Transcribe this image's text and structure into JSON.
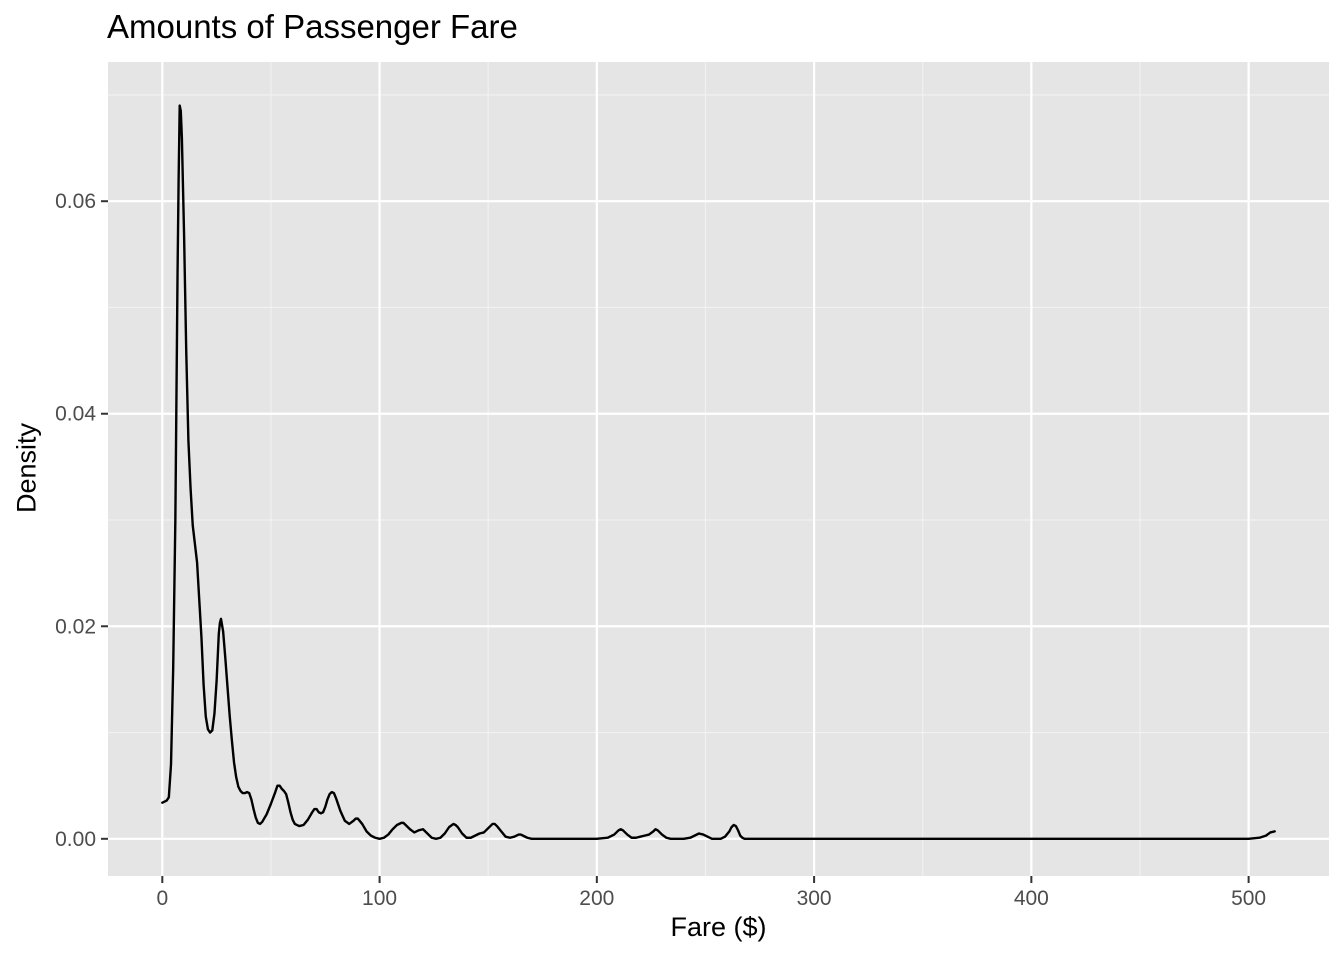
{
  "chart_data": {
    "type": "line",
    "subtype": "density",
    "title": "Amounts of Passenger Fare",
    "xlabel": "Fare ($)",
    "ylabel": "Density",
    "xlim": [
      -25,
      537
    ],
    "ylim": [
      -0.0035,
      0.0731
    ],
    "x_ticks": [
      0,
      100,
      200,
      300,
      400,
      500
    ],
    "x_tick_labels": [
      "0",
      "100",
      "200",
      "300",
      "400",
      "500"
    ],
    "x_minor_ticks": [
      50,
      150,
      250,
      350,
      450
    ],
    "y_ticks": [
      0,
      0.02,
      0.04,
      0.06
    ],
    "y_tick_labels": [
      "0.00",
      "0.02",
      "0.04",
      "0.06"
    ],
    "y_minor_ticks": [
      0.01,
      0.03,
      0.05,
      0.07
    ],
    "grid": true,
    "legend": "none",
    "colors": {
      "panel_background": "#e5e5e5",
      "grid_major": "#ffffff",
      "grid_minor": "#f2f2f2",
      "line": "#000000",
      "tick_label": "#4d4d4d",
      "tick_mark": "#333333"
    },
    "series": [
      {
        "x": [
          0,
          2,
          3,
          4,
          5,
          6,
          7,
          7.5,
          8,
          8.5,
          9,
          10,
          11,
          12,
          13,
          14,
          16,
          18,
          19,
          20,
          21,
          22,
          23,
          24,
          25,
          26,
          26.5,
          27,
          28,
          29,
          30,
          31,
          32,
          33,
          34,
          35,
          36,
          37,
          38,
          39,
          40,
          41,
          42,
          43,
          44,
          45,
          46,
          48,
          50,
          52,
          53,
          54,
          55,
          56,
          57,
          58,
          59,
          60,
          61,
          63,
          65,
          67,
          69,
          70,
          71,
          72,
          73,
          74,
          75,
          76,
          77,
          78,
          79,
          80,
          82,
          84,
          86,
          88,
          89,
          90,
          92,
          94,
          96,
          98,
          100,
          102,
          104,
          106,
          108,
          110,
          111,
          112,
          114,
          116,
          118,
          120,
          122,
          124,
          126,
          128,
          130,
          132,
          134,
          135,
          136,
          138,
          140,
          142,
          144,
          146,
          148,
          150,
          152,
          153,
          154,
          156,
          158,
          160,
          162,
          164,
          165,
          166,
          168,
          170,
          180,
          190,
          200,
          205,
          208,
          210,
          211,
          212,
          214,
          216,
          218,
          220,
          222,
          224,
          226,
          227,
          228,
          230,
          232,
          234,
          236,
          240,
          243,
          245,
          247,
          249,
          251,
          253,
          255,
          257,
          259,
          261,
          262,
          263,
          264,
          265,
          266,
          267,
          268,
          270,
          280,
          300,
          350,
          400,
          450,
          500,
          505,
          508,
          510,
          512
        ],
        "y": [
          0.0034,
          0.0036,
          0.0039,
          0.007,
          0.016,
          0.03,
          0.053,
          0.062,
          0.069,
          0.0685,
          0.066,
          0.057,
          0.046,
          0.0375,
          0.033,
          0.0295,
          0.026,
          0.019,
          0.0145,
          0.0115,
          0.0103,
          0.01,
          0.0102,
          0.0118,
          0.0149,
          0.0193,
          0.0203,
          0.0207,
          0.0195,
          0.017,
          0.0143,
          0.0116,
          0.0093,
          0.0072,
          0.0058,
          0.0049,
          0.0045,
          0.0043,
          0.0043,
          0.0044,
          0.0043,
          0.0037,
          0.0028,
          0.002,
          0.0015,
          0.0014,
          0.0016,
          0.0023,
          0.0033,
          0.0044,
          0.005,
          0.005,
          0.0047,
          0.0045,
          0.0042,
          0.0034,
          0.0025,
          0.0018,
          0.0014,
          0.0012,
          0.0013,
          0.0018,
          0.0025,
          0.0028,
          0.0028,
          0.0025,
          0.0024,
          0.0025,
          0.003,
          0.0037,
          0.0042,
          0.0044,
          0.0043,
          0.0038,
          0.0026,
          0.0017,
          0.0014,
          0.0017,
          0.0019,
          0.0019,
          0.0014,
          0.0007,
          0.0003,
          0.0001,
          0.0,
          0.0001,
          0.0004,
          0.0009,
          0.0013,
          0.0015,
          0.0015,
          0.0013,
          0.0009,
          0.0006,
          0.0008,
          0.0009,
          0.0005,
          0.0001,
          0.0,
          0.0001,
          0.0005,
          0.0011,
          0.0014,
          0.0013,
          0.0011,
          0.0005,
          0.0001,
          0.0001,
          0.0003,
          0.0005,
          0.0006,
          0.001,
          0.0014,
          0.0014,
          0.0012,
          0.0007,
          0.0002,
          0.0001,
          0.0002,
          0.0004,
          0.0004,
          0.0003,
          0.0001,
          0.0,
          0.0,
          0.0,
          0.0,
          0.0001,
          0.0004,
          0.0008,
          0.0009,
          0.0008,
          0.0004,
          0.0001,
          0.0001,
          0.0002,
          0.0003,
          0.0004,
          0.0007,
          0.0009,
          0.0008,
          0.0004,
          0.0001,
          0.0,
          0.0,
          0.0,
          0.0001,
          0.0003,
          0.0005,
          0.0004,
          0.0002,
          0.0,
          0.0,
          0.0,
          0.0002,
          0.0007,
          0.0011,
          0.0013,
          0.0012,
          0.0008,
          0.0003,
          0.0001,
          0.0,
          0.0,
          0.0,
          0.0,
          0.0,
          0.0,
          0.0,
          0.0,
          0.0001,
          0.0003,
          0.0006,
          0.0007
        ]
      }
    ]
  }
}
